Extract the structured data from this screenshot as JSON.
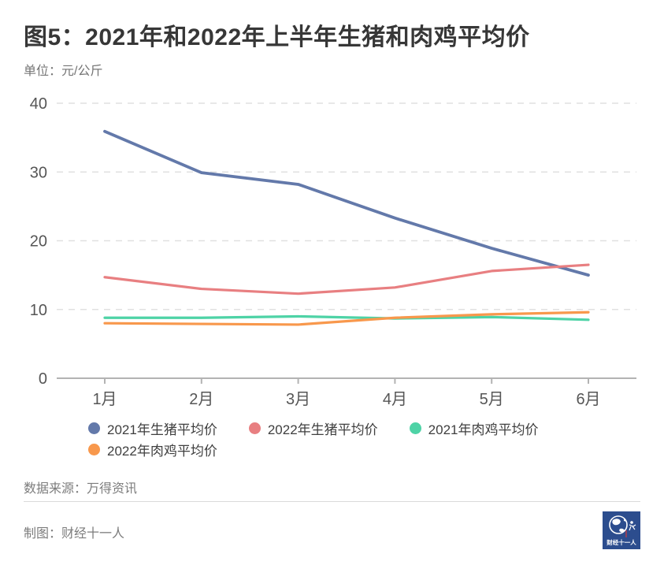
{
  "header": {
    "title": "图5：2021年和2022年上半年生猪和肉鸡平均价",
    "unit_label": "单位：元/公斤"
  },
  "chart_data": {
    "type": "line",
    "categories": [
      "1月",
      "2月",
      "3月",
      "4月",
      "5月",
      "6月"
    ],
    "series": [
      {
        "name": "2021年生猪平均价",
        "color": "#6379aa",
        "values": [
          35.9,
          29.9,
          28.2,
          23.3,
          18.9,
          15.0
        ]
      },
      {
        "name": "2022年生猪平均价",
        "color": "#e87f81",
        "values": [
          14.7,
          13.0,
          12.3,
          13.2,
          15.6,
          16.5
        ]
      },
      {
        "name": "2021年肉鸡平均价",
        "color": "#4ed3a6",
        "values": [
          8.8,
          8.8,
          9.0,
          8.7,
          8.9,
          8.5
        ]
      },
      {
        "name": "2022年肉鸡平均价",
        "color": "#f8984c",
        "values": [
          8.0,
          7.9,
          7.8,
          8.8,
          9.3,
          9.6
        ]
      }
    ],
    "title": "图5：2021年和2022年上半年生猪和肉鸡平均价",
    "xlabel": "",
    "ylabel": "元/公斤",
    "ylim": [
      0,
      40
    ],
    "y_ticks": [
      0,
      10,
      20,
      30,
      40
    ],
    "grid": "horizontal-dashed",
    "legend_position": "bottom"
  },
  "footer": {
    "source": "数据来源：万得资讯",
    "credit": "制图：财经十一人",
    "logo_text": "财经十一人"
  }
}
